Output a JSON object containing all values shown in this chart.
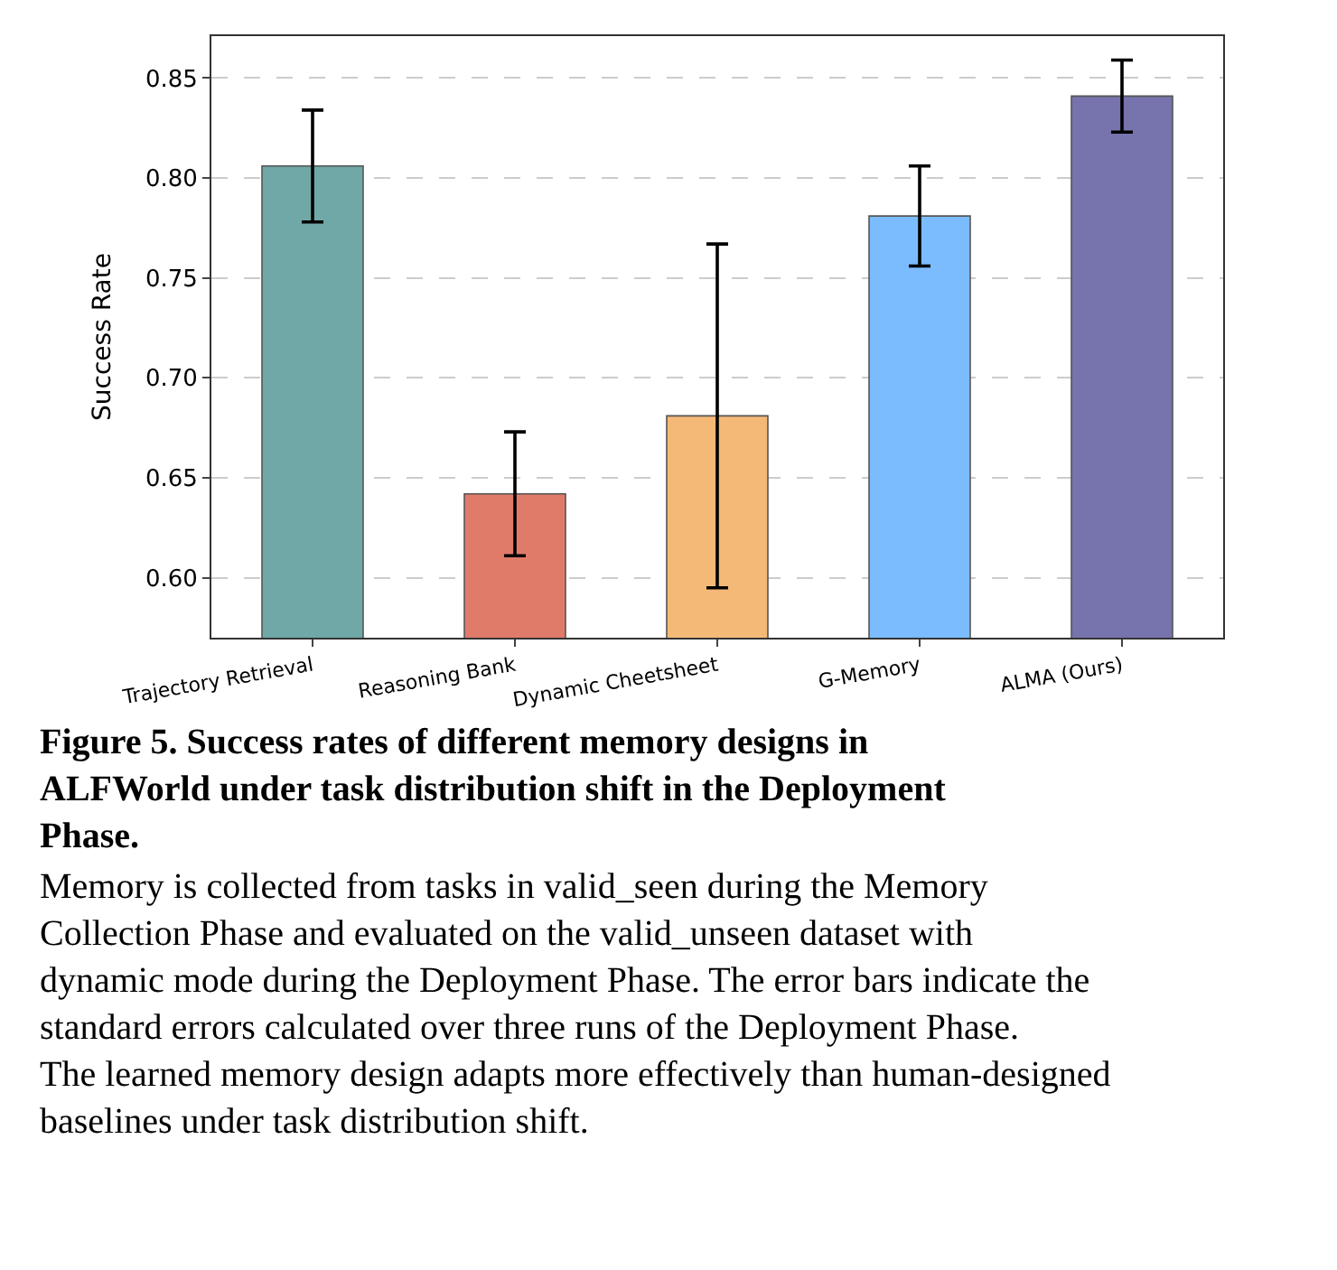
{
  "chart_data": {
    "type": "bar",
    "ylabel": "Success Rate",
    "categories": [
      "Trajectory Retrieval",
      "Reasoning Bank",
      "Dynamic Cheetsheet",
      "G-Memory",
      "ALMA (Ours)"
    ],
    "values": [
      0.806,
      0.642,
      0.681,
      0.781,
      0.841
    ],
    "errors": [
      0.028,
      0.031,
      0.086,
      0.025,
      0.018
    ],
    "colors": [
      "#6fa8a6",
      "#e07b6a",
      "#f5b977",
      "#7bbcff",
      "#7773ad"
    ],
    "ylim": [
      0.57,
      0.871
    ],
    "yticks": [
      {
        "value": 0.6,
        "label": "0.60"
      },
      0.65,
      {
        "value": 0.7,
        "label": "0.70"
      },
      0.75,
      {
        "value": 0.8,
        "label": "0.80"
      },
      0.85
    ],
    "grid": "y",
    "annotations": [
      "Figure 5. Success rates of different memory designs in ALFWorld under task distribution shift in the Deployment Phase.",
      "Memory is collected from tasks in valid_seen during the Memory Collection Phase and evaluated on the valid_unseen dataset with dynamic mode during the Deployment Phase. The error bars indicate the standard errors calculated over three runs of the Deployment Phase. The learned memory design adapts more effectively than human-designed baselines under task distribution shift."
    ]
  }
}
